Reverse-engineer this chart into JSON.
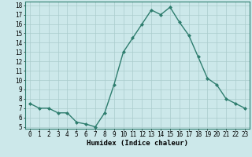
{
  "xlabel": "Humidex (Indice chaleur)",
  "x_values": [
    0,
    1,
    2,
    3,
    4,
    5,
    6,
    7,
    8,
    9,
    10,
    11,
    12,
    13,
    14,
    15,
    16,
    17,
    18,
    19,
    20,
    21,
    22,
    23
  ],
  "y_values": [
    7.5,
    7.0,
    7.0,
    6.5,
    6.5,
    5.5,
    5.3,
    5.0,
    6.5,
    9.5,
    13.0,
    14.5,
    16.0,
    17.5,
    17.0,
    17.8,
    16.2,
    14.8,
    12.5,
    10.2,
    9.5,
    8.0,
    7.5,
    7.0
  ],
  "line_color": "#2e7d6e",
  "marker": "D",
  "marker_size": 2.0,
  "line_width": 1.0,
  "background_color": "#cce8ea",
  "grid_color": "#aacccc",
  "ylim": [
    4.8,
    18.4
  ],
  "xlim": [
    -0.5,
    23.5
  ],
  "yticks": [
    5,
    6,
    7,
    8,
    9,
    10,
    11,
    12,
    13,
    14,
    15,
    16,
    17,
    18
  ],
  "xticks": [
    0,
    1,
    2,
    3,
    4,
    5,
    6,
    7,
    8,
    9,
    10,
    11,
    12,
    13,
    14,
    15,
    16,
    17,
    18,
    19,
    20,
    21,
    22,
    23
  ],
  "tick_fontsize": 5.5,
  "xlabel_fontsize": 6.5
}
